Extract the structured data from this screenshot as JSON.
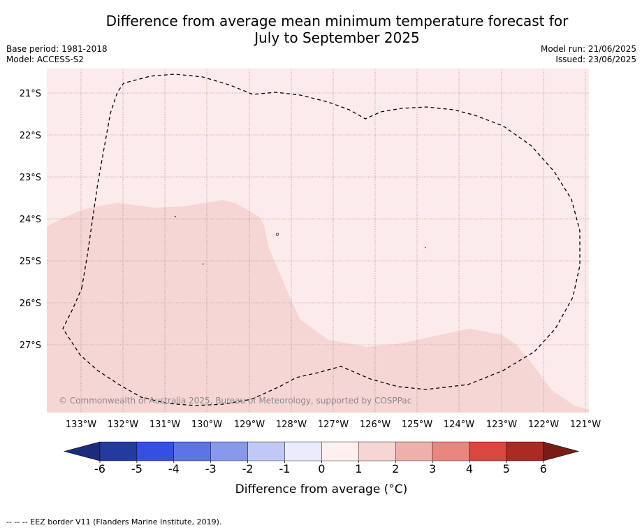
{
  "header": {
    "title_line1": "Difference from average mean minimum temperature forecast for",
    "title_line2": "July to September 2025",
    "base_period": "Base period: 1981-2018",
    "model": "Model: ACCESS-S2",
    "model_run": "Model run: 21/06/2025",
    "issued": "Issued: 23/06/2025"
  },
  "map": {
    "lat_labels": [
      "21°S",
      "22°S",
      "23°S",
      "24°S",
      "25°S",
      "26°S",
      "27°S"
    ],
    "lon_labels": [
      "133°W",
      "132°W",
      "131°W",
      "130°W",
      "129°W",
      "128°W",
      "127°W",
      "126°W",
      "125°W",
      "124°W",
      "123°W",
      "122°W",
      "121°W"
    ],
    "copyright": "© Commonwealth of Australia 2025, Bureau of Meteorology, supported by COSPPac",
    "colors": {
      "zero_to_one": "#fbebea",
      "one_to_two": "#f5d6d4",
      "eez_border": "#000000"
    }
  },
  "colorbar": {
    "title": "Difference from average (°C)",
    "ticks": [
      "-6",
      "-5",
      "-4",
      "-3",
      "-2",
      "-1",
      "0",
      "1",
      "2",
      "3",
      "4",
      "5",
      "6"
    ],
    "colors": [
      "#233b9f",
      "#3550e0",
      "#5b74e6",
      "#8899ec",
      "#c0c8f6",
      "#e9ecfb",
      "#fdf0ee",
      "#f5d6d4",
      "#eeb0aa",
      "#e8877f",
      "#d9473f",
      "#ab2a24"
    ],
    "under_color": "#1b2d7a",
    "over_color": "#7a1c16"
  },
  "footer": {
    "legend": "--  --  -- EEZ border V11 (Flanders Marine Institute, 2019)."
  }
}
